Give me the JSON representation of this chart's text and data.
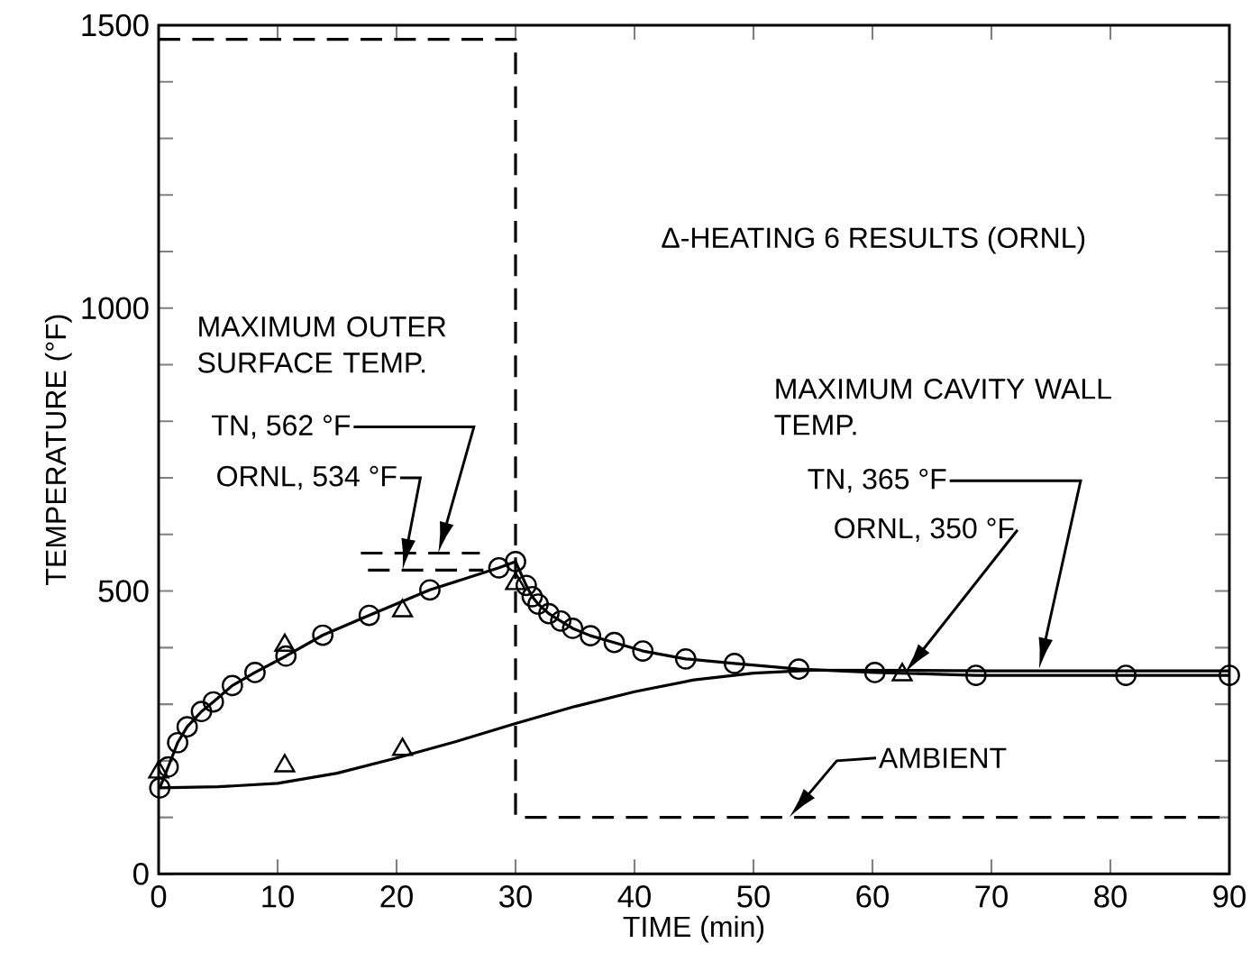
{
  "chart_data": {
    "type": "line",
    "xlabel": "TIME (min)",
    "ylabel": "TEMPERATURE (°F)",
    "xlim": [
      0,
      90
    ],
    "xticks": [
      0,
      10,
      20,
      30,
      40,
      50,
      60,
      70,
      80,
      90
    ],
    "ylim": [
      0,
      1500
    ],
    "yticks": [
      0,
      {
        "value": 100,
        "label": null
      },
      {
        "value": 200,
        "label": null
      },
      {
        "value": 300,
        "label": null
      },
      {
        "value": 400,
        "label": null
      },
      500,
      {
        "value": 600,
        "label": null
      },
      {
        "value": 700,
        "label": null
      },
      {
        "value": 800,
        "label": null
      },
      {
        "value": 900,
        "label": null
      },
      1000,
      {
        "value": 1100,
        "label": null
      },
      {
        "value": 1200,
        "label": null
      },
      {
        "value": 1300,
        "label": null
      },
      {
        "value": 1400,
        "label": null
      },
      1500
    ],
    "grid": false,
    "series": [
      {
        "marker": "circle",
        "color": "#000000",
        "x": [
          0.1,
          0.8,
          1.6,
          2.4,
          3.6,
          4.6,
          6.2,
          8.1,
          10.7,
          13.8,
          17.7,
          22.8,
          28.6,
          30.0,
          30.9,
          31.4,
          31.9,
          32.8,
          33.8,
          34.8,
          36.3,
          38.3,
          40.7,
          44.3,
          48.4,
          53.8,
          60.2,
          68.7,
          81.3,
          90
        ],
        "values": [
          152,
          189,
          232,
          260,
          287,
          304,
          333,
          356,
          385,
          422,
          457,
          502,
          541,
          552,
          510,
          490,
          477,
          460,
          447,
          434,
          421,
          409,
          394,
          380,
          372,
          362,
          356,
          351,
          351,
          351
        ]
      },
      {
        "type": "scatter",
        "marker": "triangle",
        "color": "#000000",
        "x": [
          0,
          10.6,
          20.5,
          30.0,
          10.6,
          20.5,
          62.5
        ],
        "values": [
          180,
          404,
          465,
          513,
          191,
          220,
          352
        ]
      },
      {
        "color": "#000000",
        "x": [
          0,
          5,
          10,
          15,
          20,
          25,
          30,
          35,
          40,
          45,
          50,
          55,
          60,
          70,
          80,
          90
        ],
        "values": [
          152,
          154,
          160,
          178,
          205,
          234,
          266,
          296,
          322,
          343,
          355,
          360,
          360,
          359,
          359,
          359
        ]
      },
      {
        "line_style": "dashed",
        "color": "#000000",
        "x": [
          0,
          30,
          30,
          90
        ],
        "values": [
          1475,
          1475,
          100,
          100
        ]
      },
      {
        "line_style": "dashed",
        "color": "#000000",
        "x": [
          17,
          27
        ],
        "values": [
          567,
          567
        ]
      },
      {
        "line_style": "dashed",
        "color": "#000000",
        "x": [
          17.6,
          27.3
        ],
        "values": [
          537,
          537
        ]
      }
    ],
    "annotations": [
      "MAXIMUM OUTER SURFACE TEMP.",
      "TN, 562 °F",
      "ORNL, 534 °F",
      "MAXIMUM CAVITY WALL TEMP.",
      "TN, 365 °F",
      "ORNL, 350 °F",
      "AMBIENT",
      "Δ-HEATING 6 RESULTS (ORNL)"
    ]
  }
}
